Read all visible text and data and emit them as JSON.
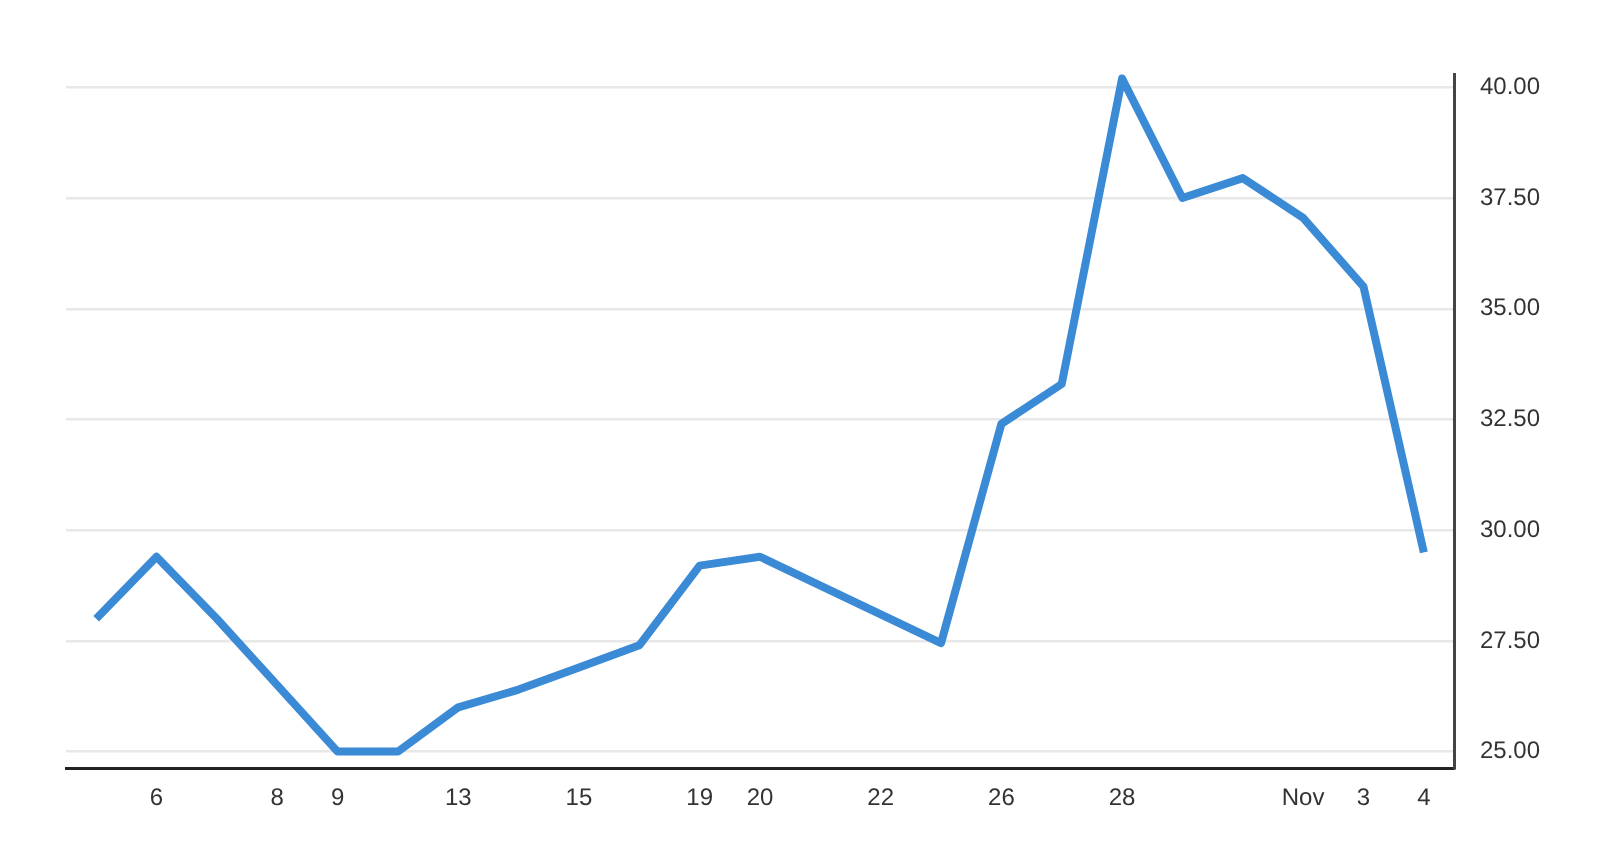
{
  "chart_data": {
    "type": "line",
    "categories": [
      null,
      "6",
      null,
      "8",
      "9",
      null,
      "13",
      null,
      "15",
      null,
      "19",
      "20",
      null,
      "22",
      null,
      "26",
      null,
      "28",
      null,
      null,
      "Nov",
      "3",
      "4"
    ],
    "values": [
      28.0,
      29.4,
      28.0,
      26.5,
      25.0,
      25.0,
      26.0,
      26.4,
      26.9,
      27.4,
      29.2,
      29.4,
      28.75,
      28.1,
      27.45,
      32.4,
      33.3,
      40.2,
      37.5,
      37.95,
      37.05,
      35.5,
      29.5
    ],
    "color": "#3a8ad6",
    "ylim": [
      24.63,
      40.3
    ],
    "yticks": [
      {
        "value": 25,
        "label": "25.00"
      },
      {
        "value": 27.5,
        "label": "27.50"
      },
      {
        "value": 30,
        "label": "30.00"
      },
      {
        "value": 32.5,
        "label": "32.50"
      },
      {
        "value": 35,
        "label": "35.00"
      },
      {
        "value": 37.5,
        "label": "37.50"
      },
      {
        "value": 40,
        "label": "40.00"
      }
    ],
    "grid": "y",
    "marker": "none",
    "line_style": "solid"
  }
}
